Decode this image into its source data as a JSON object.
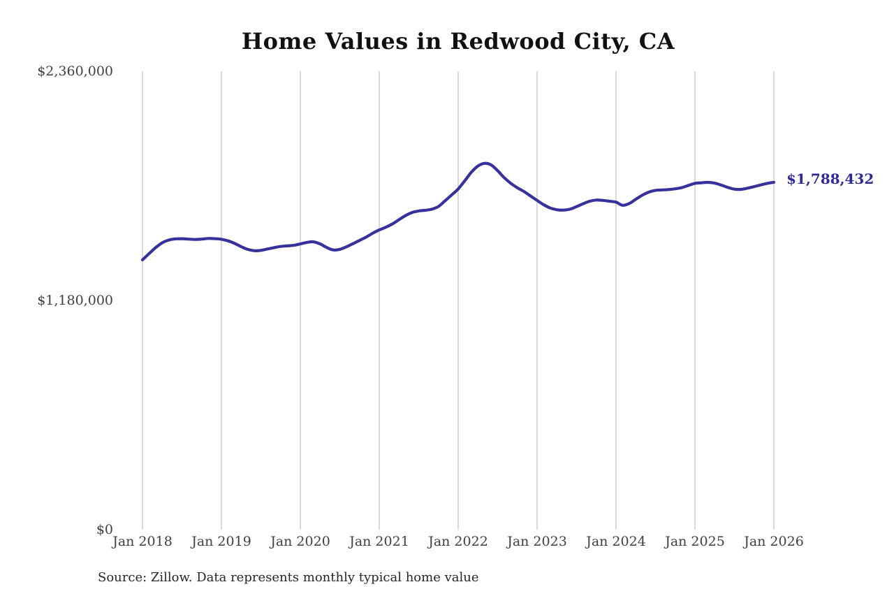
{
  "title": "Home Values in Redwood City, CA",
  "source_note": "Source: Zillow. Data represents monthly typical home value",
  "end_label": "$1,788,432",
  "colors": {
    "background": "#ffffff",
    "line": "#37329B",
    "end_label_text": "#2F2B96",
    "gridline": "#C9C9C9",
    "axis_text": "#404040",
    "title_text": "#111111",
    "source_text": "#262626"
  },
  "chart_data": {
    "type": "line",
    "title": "Home Values in Redwood City, CA",
    "xlabel": "",
    "ylabel": "",
    "grid": "vertical-only",
    "legend": "none",
    "ylim": [
      0,
      2360000
    ],
    "y_ticks": [
      {
        "label": "$0",
        "value": 0
      },
      {
        "label": "$1,180,000",
        "value": 1180000
      },
      {
        "label": "$2,360,000",
        "value": 2360000
      }
    ],
    "x_tick_labels": [
      "Jan 2018",
      "Jan 2019",
      "Jan 2020",
      "Jan 2021",
      "Jan 2022",
      "Jan 2023",
      "Jan 2024",
      "Jan 2025",
      "Jan 2026"
    ],
    "x_tick_month_indices": [
      0,
      12,
      24,
      36,
      48,
      60,
      72,
      84,
      96
    ],
    "series": [
      {
        "name": "Monthly typical home value",
        "start_label": "Jan 2018",
        "end_label": "Jan 2026",
        "interval": "monthly",
        "end_value_label": "$1,788,432",
        "values": [
          1389000,
          1421000,
          1452000,
          1477000,
          1491000,
          1497000,
          1498000,
          1496000,
          1494000,
          1496000,
          1499000,
          1498000,
          1495000,
          1487000,
          1474000,
          1457000,
          1443000,
          1436000,
          1438000,
          1445000,
          1452000,
          1458000,
          1461000,
          1464000,
          1471000,
          1479000,
          1482000,
          1471000,
          1453000,
          1440000,
          1443000,
          1456000,
          1472000,
          1489000,
          1506000,
          1526000,
          1543000,
          1557000,
          1574000,
          1596000,
          1617000,
          1633000,
          1641000,
          1644000,
          1650000,
          1664000,
          1693000,
          1723000,
          1754000,
          1796000,
          1840000,
          1872000,
          1886000,
          1878000,
          1848000,
          1812000,
          1783000,
          1760000,
          1741000,
          1718000,
          1695000,
          1673000,
          1656000,
          1647000,
          1645000,
          1650000,
          1663000,
          1678000,
          1691000,
          1697000,
          1695000,
          1691000,
          1686000,
          1670000,
          1679000,
          1701000,
          1722000,
          1738000,
          1747000,
          1749000,
          1751000,
          1755000,
          1761000,
          1772000,
          1783000,
          1786000,
          1788000,
          1784000,
          1774000,
          1762000,
          1753000,
          1752000,
          1758000,
          1766000,
          1775000,
          1783000,
          1788432
        ]
      }
    ]
  }
}
